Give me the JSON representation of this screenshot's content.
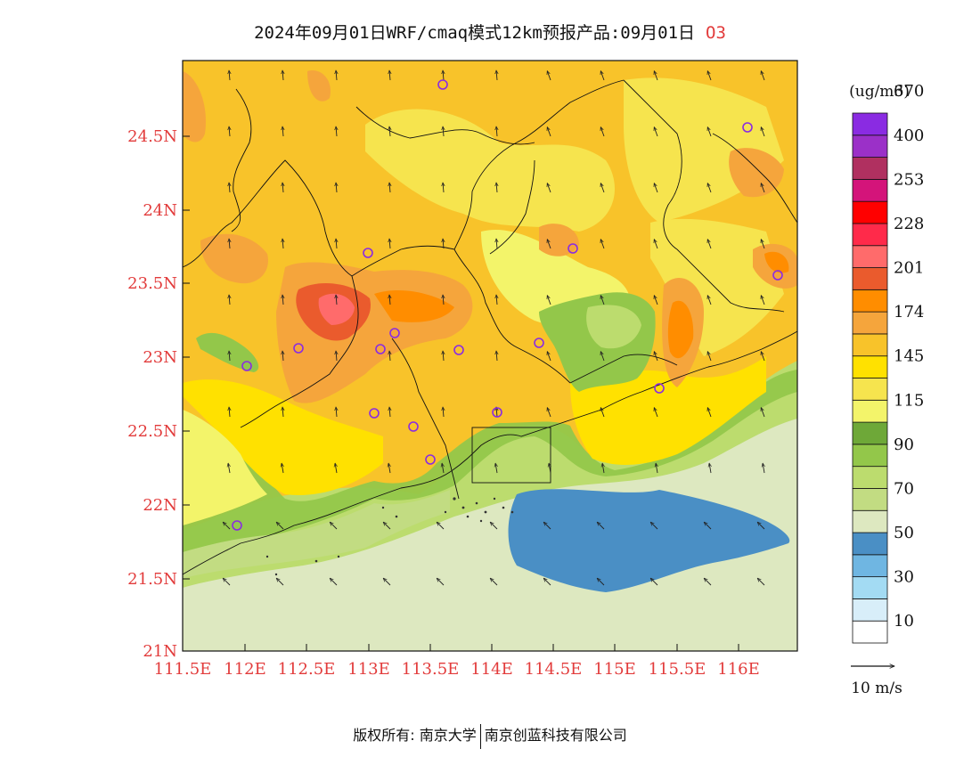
{
  "title": {
    "main": "2024年09月01日WRF/cmaq模式12km预报产品:09月01日",
    "pollutant": "O3"
  },
  "axes": {
    "lat_labels": [
      "24.5N",
      "24N",
      "23.5N",
      "23N",
      "22.5N",
      "22N",
      "21.5N",
      "21N"
    ],
    "lon_labels": [
      "111.5E",
      "112E",
      "112.5E",
      "113E",
      "113.5E",
      "114E",
      "114.5E",
      "115E",
      "115.5E",
      "116E"
    ],
    "label_color": "#e23b3b"
  },
  "colorbar": {
    "unit": "(ug/m3)",
    "colors": [
      "#ffffff",
      "#d8eef9",
      "#a3dbf3",
      "#6fb6e2",
      "#4a8fc5",
      "#dde8c0",
      "#c2dc82",
      "#bcdc6e",
      "#93c74a",
      "#6ea838",
      "#f3f46a",
      "#f6e44e",
      "#ffe100",
      "#f8c32a",
      "#f5a53c",
      "#ff8d00",
      "#ea5b2d",
      "#ff6b6b",
      "#ff2a4a",
      "#ff0000",
      "#d4147a",
      "#b03060",
      "#9b30c8",
      "#8a2be2"
    ],
    "labels": [
      "10",
      "30",
      "50",
      "70",
      "90",
      "115",
      "145",
      "174",
      "201",
      "228",
      "253",
      "400",
      "670"
    ]
  },
  "wind_legend": {
    "label": "10 m/s"
  },
  "map_colors": {
    "sea_low": "#4a8fc5",
    "sea_bg": "#dde8c0",
    "green": "#93c74a",
    "light_green": "#bcdc6e",
    "yellow": "#f3f46a",
    "gold": "#ffe100",
    "light_orange": "#f5a53c",
    "orange": "#ff8d00",
    "red_orange": "#ea5b2d",
    "pink": "#ff6b6b",
    "site_marker": "#8a2be2"
  },
  "footer": {
    "copyright": "版权所有: 南京大学",
    "company": "南京创蓝科技有限公司"
  }
}
